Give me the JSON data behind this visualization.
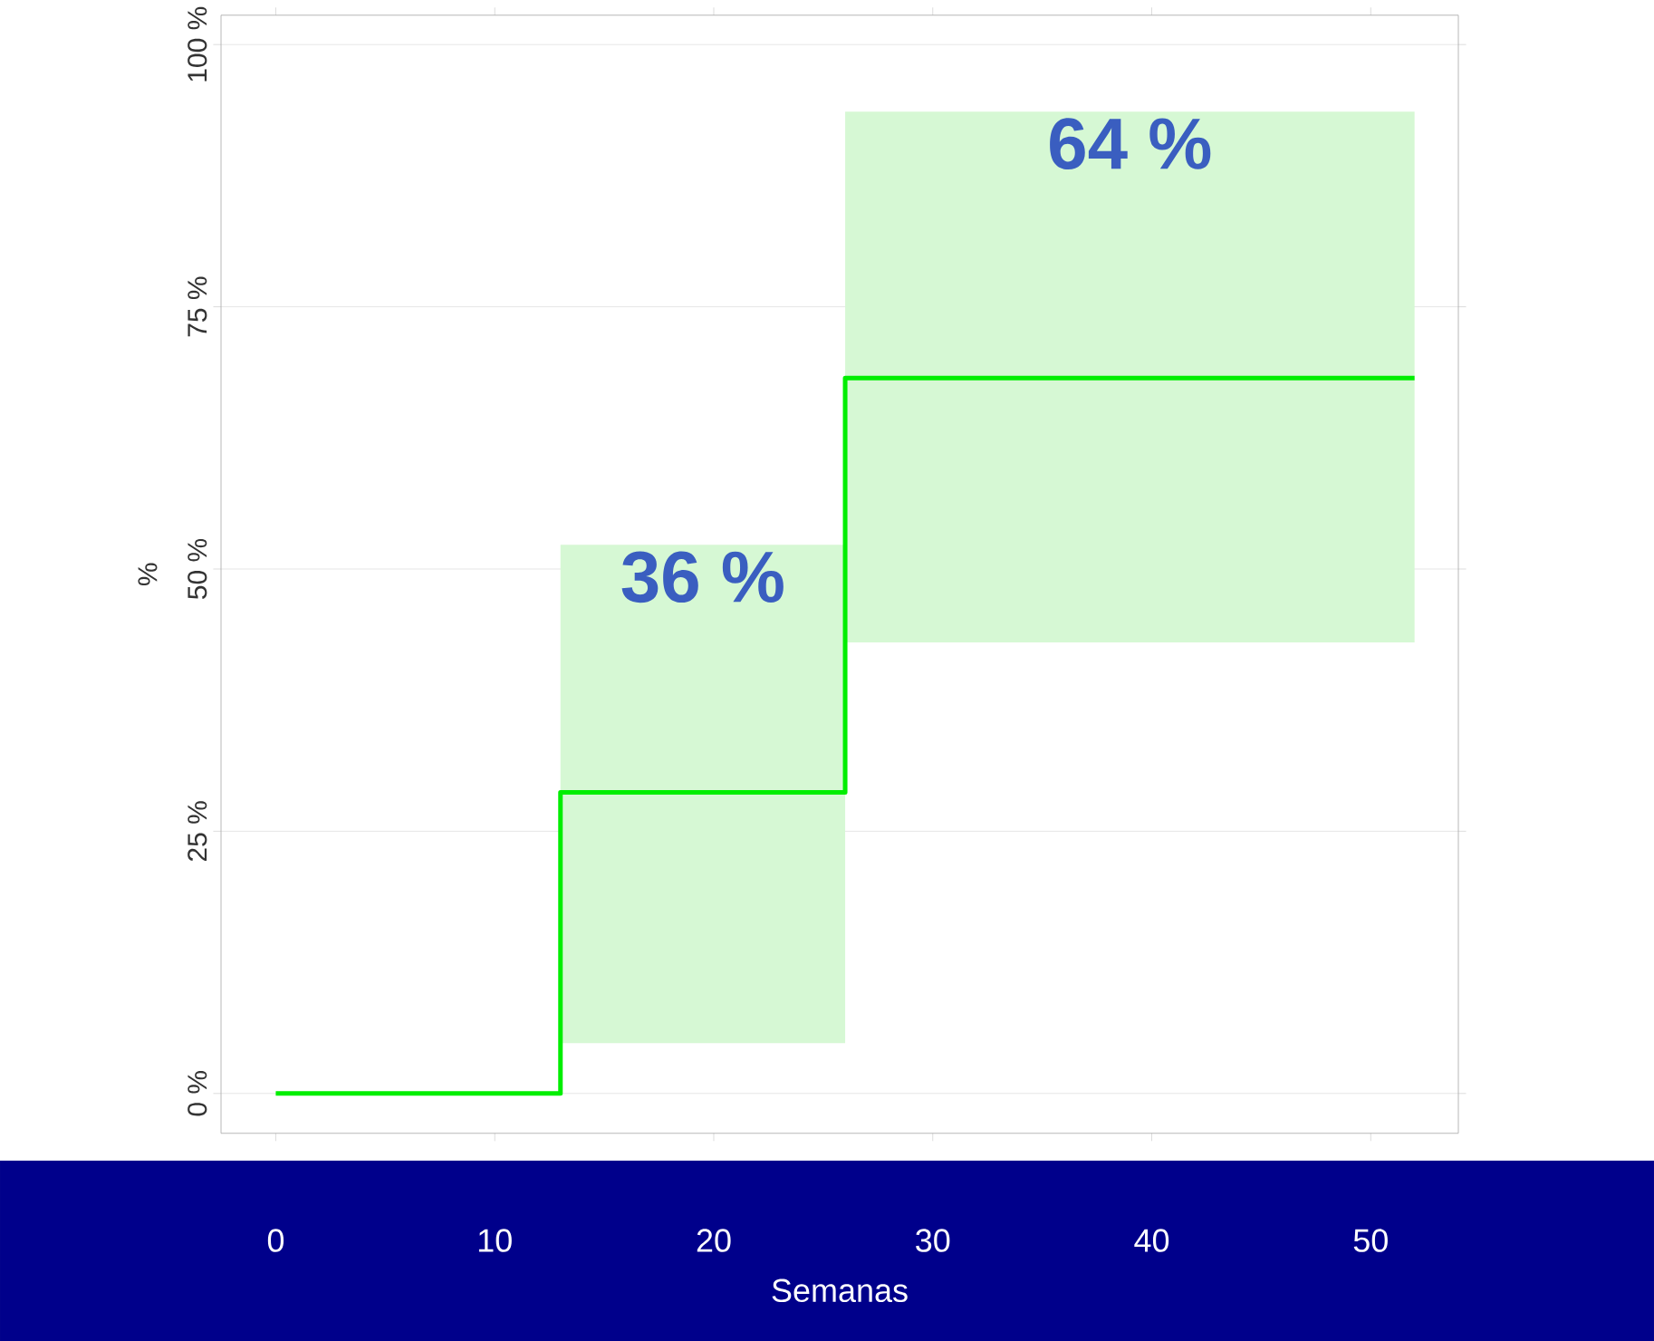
{
  "chart_data": {
    "type": "step",
    "xlabel": "Semanas",
    "ylabel": "%",
    "x": [
      0,
      13,
      26,
      52
    ],
    "series": [
      {
        "color": "#00ee00",
        "values": [
          0,
          28.7,
          68.2,
          68.2
        ],
        "lower": [
          null,
          4.8,
          43,
          43
        ],
        "upper": [
          null,
          52.3,
          93.6,
          93.6
        ]
      }
    ],
    "xlim": [
      -2.5,
      54
    ],
    "xticks": [
      0,
      10,
      20,
      30,
      40,
      50
    ],
    "ylim": [
      -3.8,
      102.8
    ],
    "yticks": [
      {
        "value": 0,
        "label": "0 %"
      },
      {
        "value": 25,
        "label": "25 %"
      },
      {
        "value": 50,
        "label": "50 %"
      },
      {
        "value": 75,
        "label": "75 %"
      },
      {
        "value": 100,
        "label": "100 %"
      }
    ],
    "grid": "y",
    "annotations": [
      "36 %",
      "64 %"
    ]
  }
}
